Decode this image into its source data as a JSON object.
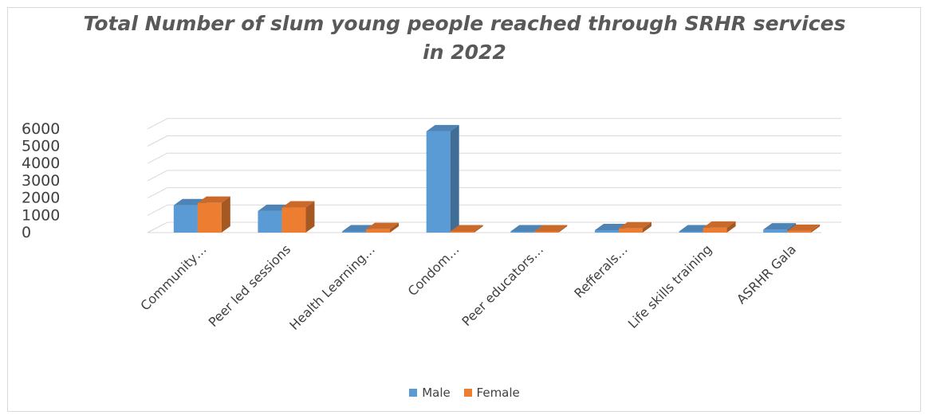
{
  "chart_data": {
    "type": "bar",
    "title_line1": "Total Number of slum young people reached through SRHR services",
    "title_line2": "in 2022",
    "categories": [
      "Community…",
      "Peer led sessions",
      "Health Learning…",
      "Condom…",
      "Peer educators…",
      "Refferals…",
      "Life skills training",
      "ASRHR Gala"
    ],
    "series": [
      {
        "name": "Male",
        "color": "#5b9bd5",
        "values": [
          1580,
          1250,
          40,
          5860,
          30,
          140,
          60,
          180
        ]
      },
      {
        "name": "Female",
        "color": "#ed7d31",
        "values": [
          1720,
          1450,
          200,
          30,
          40,
          240,
          280,
          100
        ]
      }
    ],
    "yticks": [
      0,
      1000,
      2000,
      3000,
      4000,
      5000,
      6000
    ],
    "ylim": [
      0,
      6000
    ],
    "grid": true,
    "legend_position": "bottom"
  }
}
